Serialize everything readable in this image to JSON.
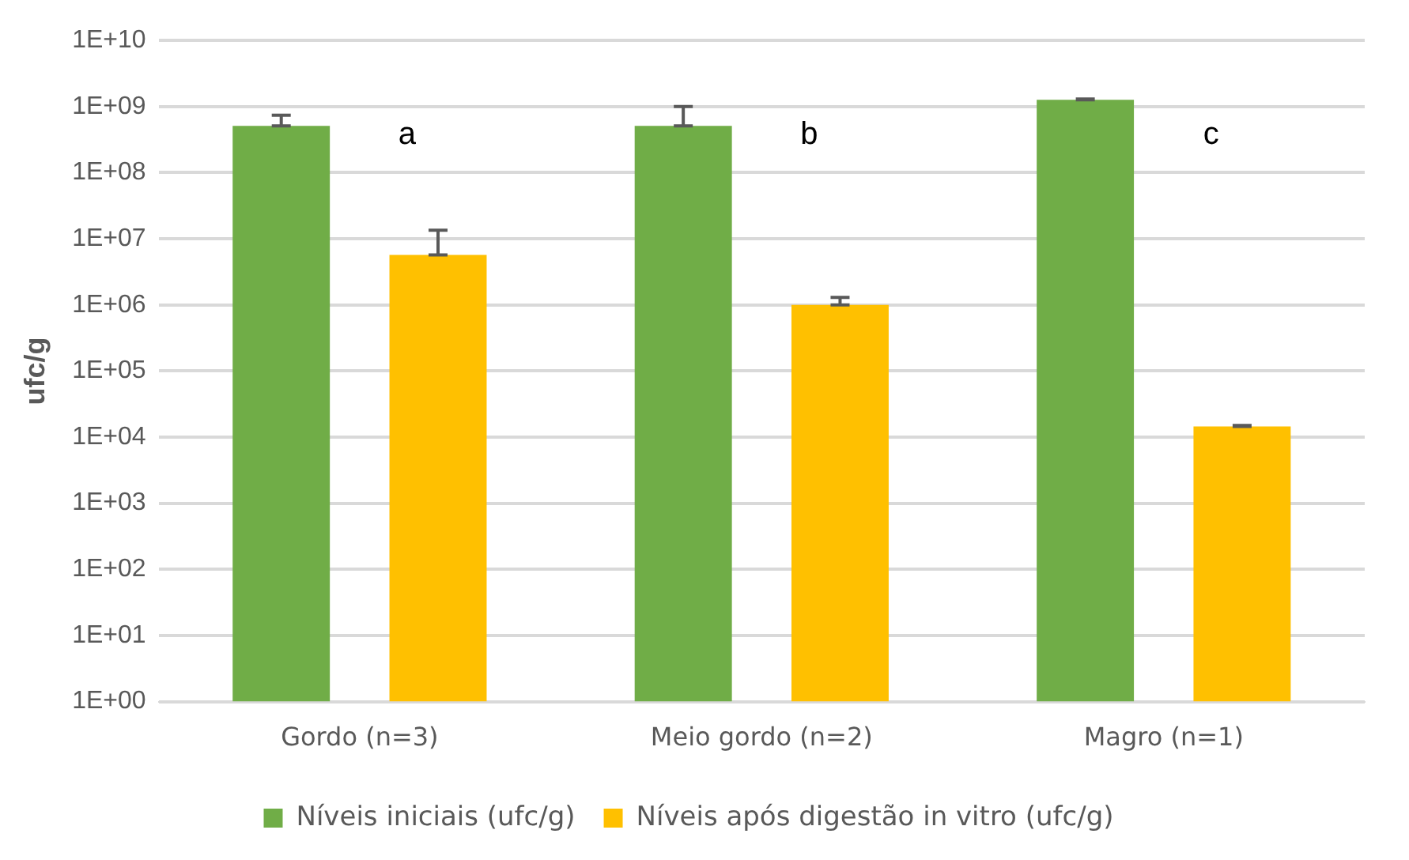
{
  "chart_data": {
    "type": "bar",
    "ylabel": "ufc/g",
    "categories": [
      "Gordo (n=3)",
      "Meio gordo (n=2)",
      "Magro (n=1)"
    ],
    "series": [
      {
        "name": "Níveis iniciais (ufc/g)",
        "color": "#70ad47",
        "values": [
          510000000,
          510000000,
          1270000000
        ],
        "errors": [
          [
            510000000,
            740000000
          ],
          [
            510000000,
            1000000000
          ],
          [
            1270000000,
            1300000000
          ]
        ]
      },
      {
        "name": "Níveis após digestão in vitro (ufc/g)",
        "color": "#ffc000",
        "values": [
          5700000,
          1000000,
          14500
        ],
        "errors": [
          [
            5700000,
            13500000
          ],
          [
            1000000,
            1300000
          ],
          [
            14500,
            15000
          ]
        ]
      }
    ],
    "log": "y",
    "ylim": [
      1,
      10000000000
    ],
    "yticks": [
      {
        "value": 1,
        "label": "1E+00"
      },
      {
        "value": 10,
        "label": "1E+01"
      },
      {
        "value": 100,
        "label": "1E+02"
      },
      {
        "value": 1000,
        "label": "1E+03"
      },
      {
        "value": 10000,
        "label": "1E+04"
      },
      {
        "value": 100000,
        "label": "1E+05"
      },
      {
        "value": 1000000,
        "label": "1E+06"
      },
      {
        "value": 10000000,
        "label": "1E+07"
      },
      {
        "value": 100000000,
        "label": "1E+08"
      },
      {
        "value": 1000000000,
        "label": "1E+09"
      },
      {
        "value": 10000000000,
        "label": "1E+10"
      }
    ],
    "grid": "y",
    "legend": "bottom",
    "annotations": [
      "a",
      "b",
      "c"
    ]
  }
}
